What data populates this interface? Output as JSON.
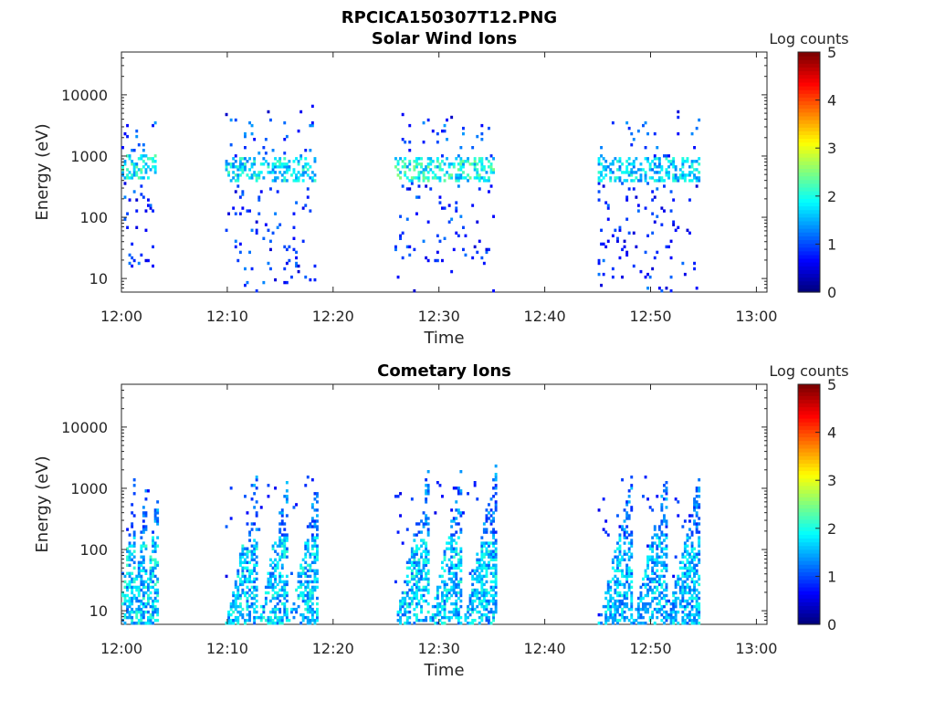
{
  "figure_title": "RPCICA150307T12.PNG",
  "chart_data": [
    {
      "type": "heatmap",
      "title": "Solar Wind Ions",
      "xlabel": "Time",
      "ylabel": "Energy (eV)",
      "x_ticks": [
        "12:00",
        "12:10",
        "12:20",
        "12:30",
        "12:40",
        "12:50",
        "13:00"
      ],
      "x_range_min": [
        0,
        61
      ],
      "y_ticks": [
        "10",
        "100",
        "1000",
        "10000"
      ],
      "y_scale": "log",
      "y_range_eV": [
        6,
        50000
      ],
      "colorbar": {
        "label": "Log counts",
        "ticks": [
          "0",
          "1",
          "2",
          "3",
          "4",
          "5"
        ],
        "range": [
          0,
          5
        ],
        "colormap": "jet"
      },
      "bursts": [
        {
          "t0": 0.0,
          "t1": 3.3,
          "core_e": [
            400,
            1000
          ],
          "core_log": 2.1,
          "lo_e": 15
        },
        {
          "t0": 9.8,
          "t1": 18.3,
          "core_e": [
            350,
            900
          ],
          "core_log": 2.0,
          "lo_e": 8
        },
        {
          "t0": 25.8,
          "t1": 35.1,
          "core_e": [
            350,
            900
          ],
          "core_log": 2.2,
          "lo_e": 15
        },
        {
          "t0": 45.0,
          "t1": 54.5,
          "core_e": [
            350,
            900
          ],
          "core_log": 1.9,
          "lo_e": 6
        }
      ]
    },
    {
      "type": "heatmap",
      "title": "Cometary Ions",
      "xlabel": "Time",
      "ylabel": "Energy (eV)",
      "x_ticks": [
        "12:00",
        "12:10",
        "12:20",
        "12:30",
        "12:40",
        "12:50",
        "13:00"
      ],
      "x_range_min": [
        0,
        61
      ],
      "y_ticks": [
        "10",
        "100",
        "1000",
        "10000"
      ],
      "y_scale": "log",
      "y_range_eV": [
        6,
        50000
      ],
      "colorbar": {
        "label": "Log counts",
        "ticks": [
          "0",
          "1",
          "2",
          "3",
          "4",
          "5"
        ],
        "range": [
          0,
          5
        ],
        "colormap": "jet"
      },
      "bursts": [
        {
          "t0": 0.0,
          "t1": 3.4,
          "peak_e": [
            20,
            1500
          ],
          "peak_log": 2.6
        },
        {
          "t0": 9.8,
          "t1": 18.6,
          "peak_e": [
            6,
            2000
          ],
          "peak_log": 2.5
        },
        {
          "t0": 25.8,
          "t1": 35.3,
          "peak_e": [
            6,
            2500
          ],
          "peak_log": 2.5
        },
        {
          "t0": 45.0,
          "t1": 54.6,
          "peak_e": [
            6,
            2000
          ],
          "peak_log": 2.4
        }
      ]
    }
  ]
}
